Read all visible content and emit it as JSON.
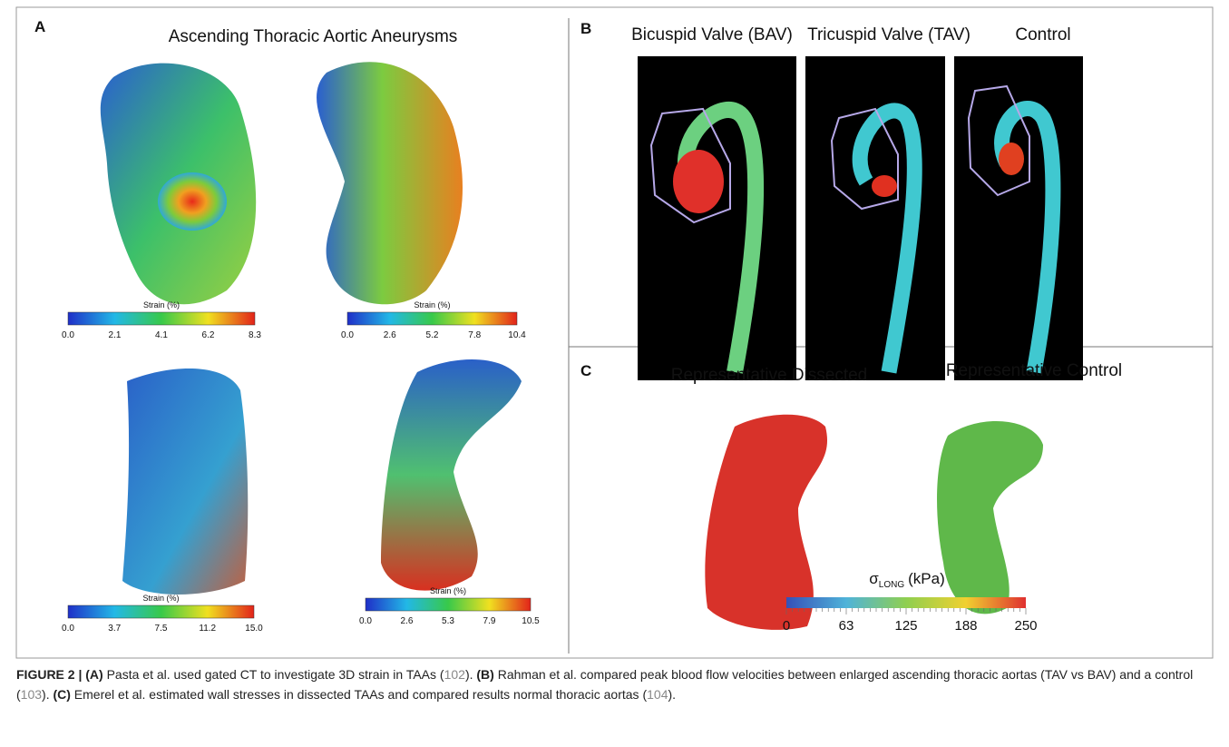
{
  "panel_a": {
    "label": "A",
    "title": "Ascending Thoracic Aortic Aneurysms",
    "colorbars": [
      {
        "label": "Strain (%)",
        "ticks": [
          "0.0",
          "2.1",
          "4.1",
          "6.2",
          "8.3"
        ]
      },
      {
        "label": "Strain (%)",
        "ticks": [
          "0.0",
          "2.6",
          "5.2",
          "7.8",
          "10.4"
        ]
      },
      {
        "label": "Strain (%)",
        "ticks": [
          "0.0",
          "3.7",
          "7.5",
          "11.2",
          "15.0"
        ]
      },
      {
        "label": "Strain (%)",
        "ticks": [
          "0.0",
          "2.6",
          "5.3",
          "7.9",
          "10.5"
        ]
      }
    ]
  },
  "panel_b": {
    "label": "B",
    "titles": [
      "Bicuspid Valve (BAV)",
      "Tricuspid Valve (TAV)",
      "Control"
    ]
  },
  "panel_c": {
    "label": "C",
    "titles": [
      "Representative Dissected",
      "Representative Control"
    ],
    "colorbar": {
      "symbol": "σ",
      "subscript": "LONG",
      "unit": "(kPa)",
      "ticks": [
        "0",
        "63",
        "125",
        "188",
        "250"
      ]
    }
  },
  "caption": [
    {
      "text": "FIGURE 2 | (A)",
      "kind": "bold"
    },
    {
      "text": " Pasta et al. used gated CT to investigate 3D strain in TAAs (",
      "kind": "plain"
    },
    {
      "text": "102",
      "kind": "ref"
    },
    {
      "text": "). ",
      "kind": "plain"
    },
    {
      "text": "(B)",
      "kind": "bold"
    },
    {
      "text": " Rahman et al. compared peak blood flow velocities between enlarged ascending thoracic aortas (TAV vs BAV) and a control (",
      "kind": "plain"
    },
    {
      "text": "103",
      "kind": "ref"
    },
    {
      "text": "). ",
      "kind": "plain"
    },
    {
      "text": "(C)",
      "kind": "bold"
    },
    {
      "text": " Emerel et al. estimated wall stresses in dissected TAAs and compared results normal thoracic aortas (",
      "kind": "plain"
    },
    {
      "text": "104",
      "kind": "ref"
    },
    {
      "text": ").",
      "kind": "plain"
    }
  ]
}
